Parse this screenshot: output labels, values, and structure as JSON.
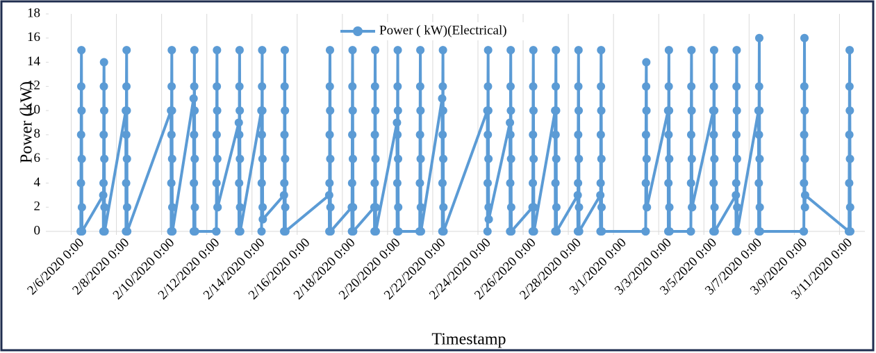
{
  "chart_data": {
    "type": "line",
    "y_label": "Power (kW)",
    "x_label": "Timestamp",
    "legend": "top",
    "grid": "x",
    "xlim": [
      "2/5/2020 0:00",
      "3/12/2020 3:00"
    ],
    "xticks": [
      "2/6/2020 0:00",
      "2/8/2020 0:00",
      "2/10/2020 0:00",
      "2/12/2020 0:00",
      "2/14/2020 0:00",
      "2/16/2020 0:00",
      "2/18/2020 0:00",
      "2/20/2020 0:00",
      "2/22/2020 0:00",
      "2/24/2020 0:00",
      "2/26/2020 0:00",
      "2/28/2020 0:00",
      "3/1/2020 0:00",
      "3/3/2020 0:00",
      "3/5/2020 0:00",
      "3/7/2020 0:00",
      "3/9/2020 0:00",
      "3/11/2020 0:00"
    ],
    "ylim": [
      0,
      18
    ],
    "yticks": [
      0,
      2,
      4,
      6,
      8,
      10,
      12,
      14,
      16,
      18
    ],
    "x": [
      "2/6/2020 10:00",
      "2/6/2020 10:10",
      "2/6/2020 10:20",
      "2/6/2020 10:30",
      "2/6/2020 10:40",
      "2/6/2020 10:50",
      "2/6/2020 11:00",
      "2/6/2020 11:10",
      "2/6/2020 11:20",
      "2/6/2020 11:30",
      "2/7/2020 10:00",
      "2/7/2020 10:10",
      "2/7/2020 10:20",
      "2/7/2020 10:30",
      "2/7/2020 10:40",
      "2/7/2020 10:50",
      "2/7/2020 11:00",
      "2/7/2020 11:10",
      "2/7/2020 11:20",
      "2/7/2020 11:30",
      "2/8/2020 10:00",
      "2/8/2020 10:10",
      "2/8/2020 10:20",
      "2/8/2020 10:30",
      "2/8/2020 10:40",
      "2/8/2020 10:50",
      "2/8/2020 11:00",
      "2/8/2020 11:10",
      "2/8/2020 11:20",
      "2/8/2020 11:30",
      "2/10/2020 10:00",
      "2/10/2020 10:10",
      "2/10/2020 10:20",
      "2/10/2020 10:30",
      "2/10/2020 10:40",
      "2/10/2020 10:50",
      "2/10/2020 11:00",
      "2/10/2020 11:10",
      "2/10/2020 11:20",
      "2/10/2020 11:30",
      "2/11/2020 10:00",
      "2/11/2020 10:10",
      "2/11/2020 10:20",
      "2/11/2020 10:30",
      "2/11/2020 10:40",
      "2/11/2020 10:50",
      "2/11/2020 11:00",
      "2/11/2020 11:10",
      "2/11/2020 11:20",
      "2/11/2020 11:30",
      "2/12/2020 10:00",
      "2/12/2020 10:10",
      "2/12/2020 10:20",
      "2/12/2020 10:30",
      "2/12/2020 10:40",
      "2/12/2020 10:50",
      "2/12/2020 11:00",
      "2/12/2020 11:10",
      "2/12/2020 11:20",
      "2/12/2020 11:30",
      "2/13/2020 10:00",
      "2/13/2020 10:10",
      "2/13/2020 10:20",
      "2/13/2020 10:30",
      "2/13/2020 10:40",
      "2/13/2020 10:50",
      "2/13/2020 11:00",
      "2/13/2020 11:10",
      "2/13/2020 11:20",
      "2/13/2020 11:30",
      "2/14/2020 10:00",
      "2/14/2020 10:10",
      "2/14/2020 10:20",
      "2/14/2020 10:30",
      "2/14/2020 10:40",
      "2/14/2020 10:50",
      "2/14/2020 11:00",
      "2/14/2020 11:10",
      "2/14/2020 11:20",
      "2/14/2020 11:30",
      "2/15/2020 10:00",
      "2/15/2020 10:10",
      "2/15/2020 10:20",
      "2/15/2020 10:30",
      "2/15/2020 10:40",
      "2/15/2020 10:50",
      "2/15/2020 11:00",
      "2/15/2020 11:10",
      "2/15/2020 11:20",
      "2/15/2020 11:30",
      "2/17/2020 10:00",
      "2/17/2020 10:10",
      "2/17/2020 10:20",
      "2/17/2020 10:30",
      "2/17/2020 10:40",
      "2/17/2020 10:50",
      "2/17/2020 11:00",
      "2/17/2020 11:10",
      "2/17/2020 11:20",
      "2/17/2020 11:30",
      "2/18/2020 10:00",
      "2/18/2020 10:10",
      "2/18/2020 10:20",
      "2/18/2020 10:30",
      "2/18/2020 10:40",
      "2/18/2020 10:50",
      "2/18/2020 11:00",
      "2/18/2020 11:10",
      "2/18/2020 11:20",
      "2/18/2020 11:30",
      "2/19/2020 10:00",
      "2/19/2020 10:10",
      "2/19/2020 10:20",
      "2/19/2020 10:30",
      "2/19/2020 10:40",
      "2/19/2020 10:50",
      "2/19/2020 11:00",
      "2/19/2020 11:10",
      "2/19/2020 11:20",
      "2/19/2020 11:30",
      "2/20/2020 10:00",
      "2/20/2020 10:10",
      "2/20/2020 10:20",
      "2/20/2020 10:30",
      "2/20/2020 10:40",
      "2/20/2020 10:50",
      "2/20/2020 11:00",
      "2/20/2020 11:10",
      "2/20/2020 11:20",
      "2/20/2020 11:30",
      "2/21/2020 10:00",
      "2/21/2020 10:10",
      "2/21/2020 10:20",
      "2/21/2020 10:30",
      "2/21/2020 10:40",
      "2/21/2020 10:50",
      "2/21/2020 11:00",
      "2/21/2020 11:10",
      "2/21/2020 11:20",
      "2/21/2020 11:30",
      "2/22/2020 10:00",
      "2/22/2020 10:10",
      "2/22/2020 10:20",
      "2/22/2020 10:30",
      "2/22/2020 10:40",
      "2/22/2020 10:50",
      "2/22/2020 11:00",
      "2/22/2020 11:10",
      "2/22/2020 11:20",
      "2/22/2020 11:30",
      "2/24/2020 10:00",
      "2/24/2020 10:10",
      "2/24/2020 10:20",
      "2/24/2020 10:30",
      "2/24/2020 10:40",
      "2/24/2020 10:50",
      "2/24/2020 11:00",
      "2/24/2020 11:10",
      "2/24/2020 11:20",
      "2/24/2020 11:30",
      "2/25/2020 10:00",
      "2/25/2020 10:10",
      "2/25/2020 10:20",
      "2/25/2020 10:30",
      "2/25/2020 10:40",
      "2/25/2020 10:50",
      "2/25/2020 11:00",
      "2/25/2020 11:10",
      "2/25/2020 11:20",
      "2/25/2020 11:30",
      "2/26/2020 10:00",
      "2/26/2020 10:10",
      "2/26/2020 10:20",
      "2/26/2020 10:30",
      "2/26/2020 10:40",
      "2/26/2020 10:50",
      "2/26/2020 11:00",
      "2/26/2020 11:10",
      "2/26/2020 11:20",
      "2/26/2020 11:30",
      "2/27/2020 10:00",
      "2/27/2020 10:10",
      "2/27/2020 10:20",
      "2/27/2020 10:30",
      "2/27/2020 10:40",
      "2/27/2020 10:50",
      "2/27/2020 11:00",
      "2/27/2020 11:10",
      "2/27/2020 11:20",
      "2/27/2020 11:30",
      "2/28/2020 10:00",
      "2/28/2020 10:10",
      "2/28/2020 10:20",
      "2/28/2020 10:30",
      "2/28/2020 10:40",
      "2/28/2020 10:50",
      "2/28/2020 11:00",
      "2/28/2020 11:10",
      "2/28/2020 11:20",
      "2/28/2020 11:30",
      "2/29/2020 10:00",
      "2/29/2020 10:10",
      "2/29/2020 10:20",
      "2/29/2020 10:30",
      "2/29/2020 10:40",
      "2/29/2020 10:50",
      "2/29/2020 11:00",
      "2/29/2020 11:10",
      "2/29/2020 11:20",
      "2/29/2020 11:30",
      "3/2/2020 10:00",
      "3/2/2020 10:10",
      "3/2/2020 10:20",
      "3/2/2020 10:30",
      "3/2/2020 10:40",
      "3/2/2020 10:50",
      "3/2/2020 11:00",
      "3/2/2020 11:10",
      "3/2/2020 11:20",
      "3/2/2020 11:30",
      "3/3/2020 10:00",
      "3/3/2020 10:10",
      "3/3/2020 10:20",
      "3/3/2020 10:30",
      "3/3/2020 10:40",
      "3/3/2020 10:50",
      "3/3/2020 11:00",
      "3/3/2020 11:10",
      "3/3/2020 11:20",
      "3/3/2020 11:30",
      "3/4/2020 10:00",
      "3/4/2020 10:10",
      "3/4/2020 10:20",
      "3/4/2020 10:30",
      "3/4/2020 10:40",
      "3/4/2020 10:50",
      "3/4/2020 11:00",
      "3/4/2020 11:10",
      "3/4/2020 11:20",
      "3/4/2020 11:30",
      "3/5/2020 10:00",
      "3/5/2020 10:10",
      "3/5/2020 10:20",
      "3/5/2020 10:30",
      "3/5/2020 10:40",
      "3/5/2020 10:50",
      "3/5/2020 11:00",
      "3/5/2020 11:10",
      "3/5/2020 11:20",
      "3/5/2020 11:30",
      "3/6/2020 10:00",
      "3/6/2020 10:10",
      "3/6/2020 10:20",
      "3/6/2020 10:30",
      "3/6/2020 10:40",
      "3/6/2020 10:50",
      "3/6/2020 11:00",
      "3/6/2020 11:10",
      "3/6/2020 11:20",
      "3/6/2020 11:30",
      "3/7/2020 10:00",
      "3/7/2020 10:10",
      "3/7/2020 10:20",
      "3/7/2020 10:30",
      "3/7/2020 10:40",
      "3/7/2020 10:50",
      "3/7/2020 11:00",
      "3/7/2020 11:10",
      "3/7/2020 11:20",
      "3/7/2020 11:30",
      "3/9/2020 10:00",
      "3/9/2020 10:10",
      "3/9/2020 10:20",
      "3/9/2020 10:30",
      "3/9/2020 10:40",
      "3/9/2020 10:50",
      "3/9/2020 11:00",
      "3/9/2020 11:10",
      "3/9/2020 11:20",
      "3/9/2020 11:30",
      "3/11/2020 10:00",
      "3/11/2020 10:10",
      "3/11/2020 10:20",
      "3/11/2020 10:30",
      "3/11/2020 10:40",
      "3/11/2020 10:50",
      "3/11/2020 11:00",
      "3/11/2020 11:10",
      "3/11/2020 11:20",
      "3/11/2020 11:30"
    ],
    "series": [
      {
        "name": "Power ( kW)(Electrical)",
        "color": "#5b9bd5",
        "values": [
          0,
          0,
          4,
          8,
          12,
          15,
          10,
          6,
          2,
          0,
          3,
          0,
          4,
          8,
          12,
          14,
          10,
          6,
          2,
          0,
          10,
          0,
          4,
          8,
          12,
          15,
          10,
          6,
          2,
          0,
          10,
          0,
          4,
          8,
          12,
          15,
          10,
          6,
          2,
          0,
          11,
          0,
          4,
          8,
          12,
          15,
          10,
          6,
          2,
          0,
          0,
          0,
          4,
          8,
          12,
          15,
          10,
          6,
          2,
          2,
          9,
          0,
          4,
          8,
          12,
          15,
          10,
          6,
          2,
          0,
          10,
          0,
          4,
          8,
          12,
          15,
          10,
          6,
          2,
          1,
          3,
          0,
          4,
          8,
          12,
          15,
          10,
          6,
          2,
          0,
          3,
          0,
          4,
          8,
          12,
          15,
          10,
          6,
          2,
          0,
          2,
          0,
          4,
          8,
          12,
          15,
          10,
          6,
          2,
          0,
          2,
          0,
          4,
          8,
          12,
          15,
          10,
          6,
          2,
          0,
          9,
          0,
          4,
          8,
          12,
          15,
          10,
          6,
          2,
          0,
          0,
          0,
          4,
          8,
          12,
          15,
          10,
          6,
          2,
          0,
          11,
          0,
          4,
          8,
          12,
          15,
          10,
          6,
          2,
          0,
          10,
          0,
          4,
          8,
          12,
          15,
          10,
          6,
          2,
          1,
          9,
          0,
          4,
          8,
          12,
          15,
          10,
          6,
          2,
          0,
          2,
          0,
          4,
          8,
          12,
          15,
          10,
          6,
          2,
          0,
          10,
          0,
          4,
          8,
          12,
          15,
          10,
          6,
          2,
          0,
          3,
          0,
          4,
          8,
          12,
          15,
          10,
          6,
          2,
          0,
          3,
          0,
          4,
          8,
          12,
          15,
          10,
          6,
          2,
          0,
          0,
          0,
          4,
          8,
          12,
          14,
          10,
          6,
          2,
          2,
          10,
          0,
          4,
          8,
          12,
          15,
          10,
          6,
          2,
          0,
          0,
          0,
          4,
          8,
          12,
          15,
          10,
          6,
          2,
          2,
          10,
          0,
          4,
          8,
          12,
          15,
          10,
          6,
          2,
          0,
          3,
          0,
          4,
          8,
          12,
          15,
          10,
          6,
          2,
          0,
          10,
          0,
          4,
          8,
          12,
          16,
          10,
          6,
          2,
          0,
          0,
          0,
          4,
          8,
          12,
          16,
          10,
          6,
          2,
          3,
          0,
          0,
          4,
          8,
          12,
          15,
          10,
          6,
          2,
          0
        ]
      }
    ]
  }
}
